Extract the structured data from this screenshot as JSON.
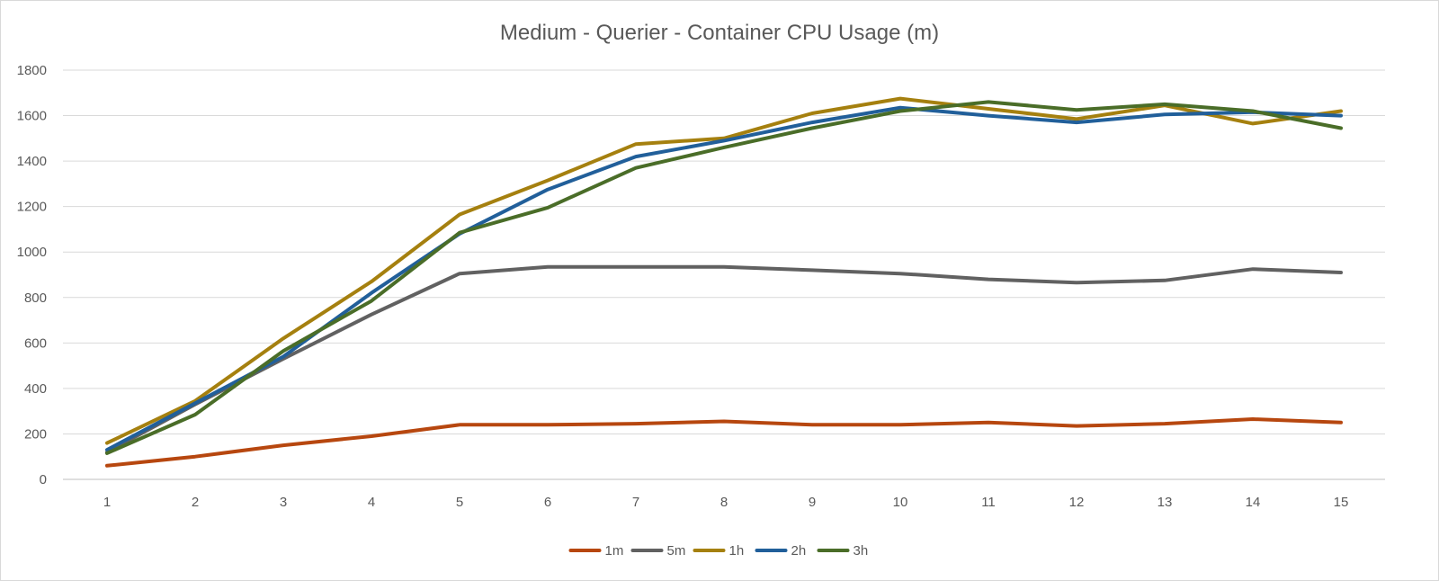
{
  "chart_data": {
    "type": "line",
    "title": "Medium - Querier - Container CPU Usage (m)",
    "xlabel": "",
    "ylabel": "",
    "categories": [
      "1",
      "2",
      "3",
      "4",
      "5",
      "6",
      "7",
      "8",
      "9",
      "10",
      "11",
      "12",
      "13",
      "14",
      "15"
    ],
    "ylim": [
      0,
      1800
    ],
    "yticks": [
      "0",
      "200",
      "400",
      "600",
      "800",
      "1000",
      "1200",
      "1400",
      "1600",
      "1800"
    ],
    "grid": true,
    "legend_position": "bottom",
    "series": [
      {
        "name": "1m",
        "color": "#b7470f",
        "values": [
          60,
          100,
          150,
          190,
          240,
          240,
          245,
          255,
          240,
          240,
          250,
          235,
          245,
          265,
          250
        ]
      },
      {
        "name": "5m",
        "color": "#616161",
        "values": [
          120,
          330,
          530,
          725,
          905,
          935,
          935,
          935,
          920,
          905,
          880,
          865,
          875,
          925,
          910
        ]
      },
      {
        "name": "1h",
        "color": "#a5800f",
        "values": [
          160,
          345,
          620,
          870,
          1165,
          1315,
          1475,
          1500,
          1610,
          1675,
          1630,
          1585,
          1645,
          1565,
          1620
        ]
      },
      {
        "name": "2h",
        "color": "#215f9a",
        "values": [
          130,
          335,
          540,
          820,
          1080,
          1275,
          1420,
          1490,
          1570,
          1635,
          1600,
          1570,
          1605,
          1615,
          1600
        ]
      },
      {
        "name": "3h",
        "color": "#4a6d28",
        "values": [
          115,
          285,
          565,
          785,
          1085,
          1195,
          1370,
          1460,
          1545,
          1620,
          1660,
          1625,
          1650,
          1620,
          1545
        ]
      }
    ]
  }
}
